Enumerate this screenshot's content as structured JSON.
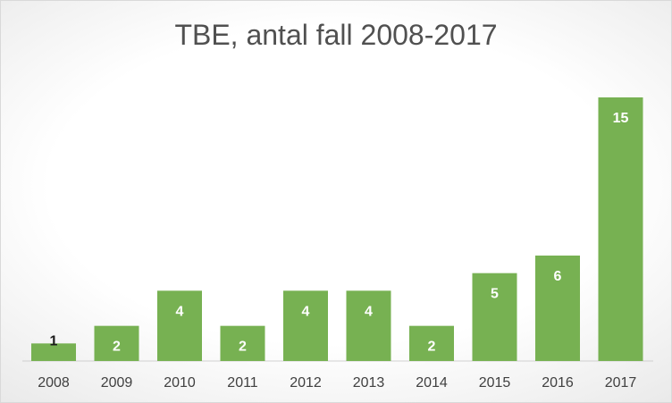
{
  "chart_data": {
    "type": "bar",
    "title": "TBE, antal fall 2008-2017",
    "categories": [
      "2008",
      "2009",
      "2010",
      "2011",
      "2012",
      "2013",
      "2014",
      "2015",
      "2016",
      "2017"
    ],
    "values": [
      1,
      2,
      4,
      2,
      4,
      4,
      2,
      5,
      6,
      15
    ],
    "xlabel": "",
    "ylabel": "",
    "ylim": [
      0,
      15
    ],
    "grid": false,
    "legend": "none",
    "data_labels": true,
    "colors": {
      "bar": "#77b152",
      "title": "#505050",
      "label_inside": "#ffffff",
      "label_outside": "#1a1a1a"
    }
  }
}
